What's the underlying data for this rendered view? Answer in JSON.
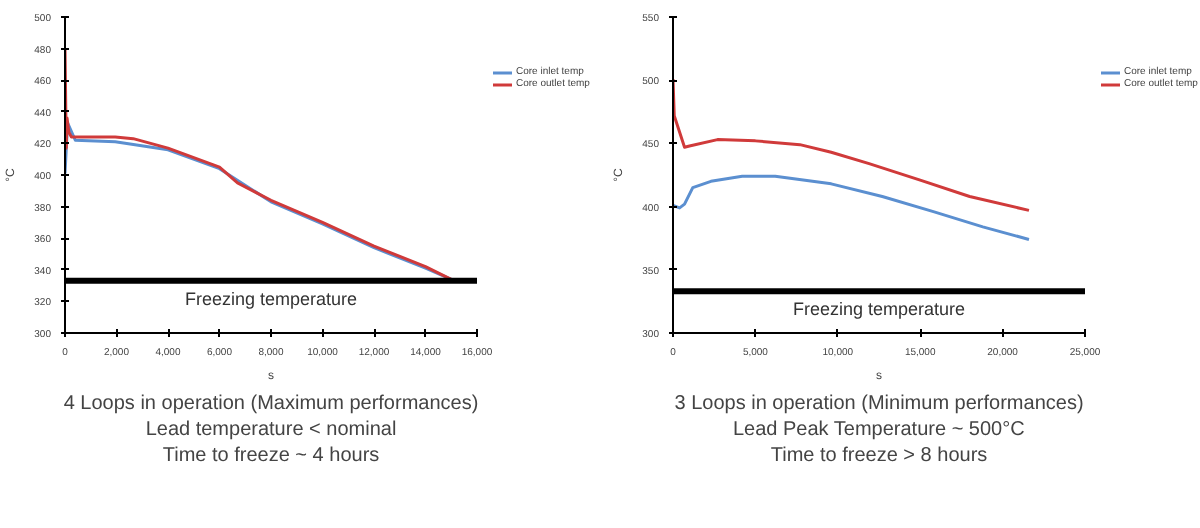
{
  "chart_data": [
    {
      "type": "line",
      "xlabel": "s",
      "ylabel": "°C",
      "xlim": [
        0,
        16000
      ],
      "ylim": [
        300,
        500
      ],
      "xticks": [
        {
          "value": 0,
          "label": "0"
        },
        {
          "value": 2000,
          "label": "2,000"
        },
        {
          "value": 4000,
          "label": "4,000"
        },
        {
          "value": 6000,
          "label": "6,000"
        },
        {
          "value": 8000,
          "label": "8,000"
        },
        {
          "value": 10000,
          "label": "10,000"
        },
        {
          "value": 12000,
          "label": "12,000"
        },
        {
          "value": 14000,
          "label": "14,000"
        },
        {
          "value": 16000,
          "label": "16,000"
        }
      ],
      "yticks": [
        300,
        320,
        340,
        360,
        380,
        400,
        420,
        440,
        460,
        480,
        500
      ],
      "grid": false,
      "legend": "right",
      "series": [
        {
          "name": "Core inlet temp",
          "color": "#5b8fd0",
          "x": [
            0,
            100,
            400,
            1950,
            4000,
            6000,
            8000,
            10000,
            12000,
            14000,
            15000
          ],
          "values": [
            401,
            433,
            422,
            421,
            416,
            404,
            383,
            369,
            354,
            341,
            334
          ]
        },
        {
          "name": "Core outlet temp",
          "color": "#d03a3a",
          "x": [
            0,
            50,
            80,
            150,
            250,
            1950,
            2650,
            4000,
            5500,
            6000,
            6700,
            8000,
            10000,
            12000,
            14000,
            15000
          ],
          "values": [
            480,
            417,
            436,
            427,
            424,
            424,
            423,
            417,
            408,
            405,
            395,
            384,
            370,
            355,
            342,
            334
          ]
        }
      ],
      "ref_lines": [
        {
          "axis": "y",
          "value": 333,
          "label": "Freezing temperature",
          "color": "#000000"
        }
      ],
      "annotations": [
        "4 Loops in operation (Maximum performances)",
        "Lead temperature < nominal",
        "Time to freeze ~ 4 hours"
      ]
    },
    {
      "type": "line",
      "xlabel": "s",
      "ylabel": "°C",
      "xlim": [
        0,
        25000
      ],
      "ylim": [
        300,
        550
      ],
      "xticks": [
        {
          "value": 0,
          "label": "0"
        },
        {
          "value": 5000,
          "label": "5,000"
        },
        {
          "value": 10000,
          "label": "10,000"
        },
        {
          "value": 15000,
          "label": "15,000"
        },
        {
          "value": 20000,
          "label": "20,000"
        },
        {
          "value": 25000,
          "label": "25,000"
        }
      ],
      "yticks": [
        300,
        350,
        400,
        450,
        500,
        550
      ],
      "grid": false,
      "legend": "right",
      "series": [
        {
          "name": "Core inlet temp",
          "color": "#5b8fd0",
          "x": [
            0,
            400,
            700,
            1200,
            2300,
            4200,
            6200,
            9600,
            12700,
            15800,
            18800,
            21600
          ],
          "values": [
            401,
            399,
            402,
            415,
            420,
            424,
            424,
            418,
            408,
            396,
            384,
            374
          ]
        },
        {
          "name": "Core outlet temp",
          "color": "#d03a3a",
          "x": [
            0,
            75,
            700,
            1000,
            2700,
            5000,
            7700,
            9600,
            11900,
            15000,
            18000,
            21600
          ],
          "values": [
            501,
            472,
            447,
            448,
            453,
            452,
            449,
            443,
            434,
            421,
            408,
            397
          ]
        }
      ],
      "ref_lines": [
        {
          "axis": "y",
          "value": 333,
          "label": "Freezing temperature",
          "color": "#000000"
        }
      ],
      "annotations": [
        "3 Loops in operation (Minimum performances)",
        "Lead Peak Temperature ~ 500°C",
        "Time to freeze > 8 hours"
      ]
    }
  ]
}
